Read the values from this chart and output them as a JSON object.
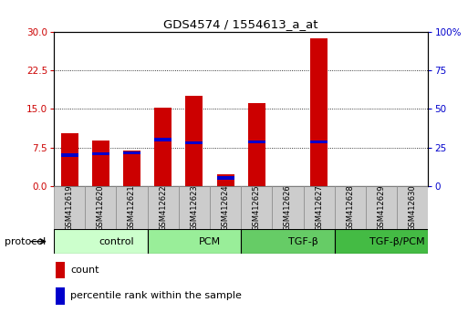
{
  "title": "GDS4574 / 1554613_a_at",
  "categories": [
    "GSM412619",
    "GSM412620",
    "GSM412621",
    "GSM412622",
    "GSM412623",
    "GSM412624",
    "GSM412625",
    "GSM412626",
    "GSM412627",
    "GSM412628",
    "GSM412629",
    "GSM412630"
  ],
  "count_values": [
    10.2,
    8.8,
    6.8,
    15.2,
    17.5,
    2.2,
    16.2,
    0.0,
    28.8,
    0.0,
    0.0,
    0.0
  ],
  "percentile_values": [
    20.0,
    21.0,
    21.5,
    30.0,
    28.0,
    5.0,
    28.5,
    0.0,
    28.5,
    0.0,
    0.0,
    0.0
  ],
  "left_ylim": [
    0,
    30
  ],
  "right_ylim": [
    0,
    100
  ],
  "left_yticks": [
    0,
    7.5,
    15,
    22.5,
    30
  ],
  "right_yticks": [
    0,
    25,
    50,
    75,
    100
  ],
  "right_yticklabels": [
    "0",
    "25",
    "50",
    "75",
    "100%"
  ],
  "bar_color": "#cc0000",
  "percentile_color": "#0000cc",
  "groups": [
    {
      "label": "control",
      "start": 0,
      "end": 3,
      "color": "#ccffcc"
    },
    {
      "label": "PCM",
      "start": 3,
      "end": 6,
      "color": "#99ee99"
    },
    {
      "label": "TGF-β",
      "start": 6,
      "end": 9,
      "color": "#66cc66"
    },
    {
      "label": "TGF-β/PCM",
      "start": 9,
      "end": 12,
      "color": "#44bb44"
    }
  ],
  "bar_width": 0.55,
  "bg_color": "#ffffff",
  "protocol_label": "protocol",
  "legend_count_label": "count",
  "legend_pct_label": "percentile rank within the sample",
  "label_box_color": "#cccccc",
  "label_box_edge": "#888888"
}
